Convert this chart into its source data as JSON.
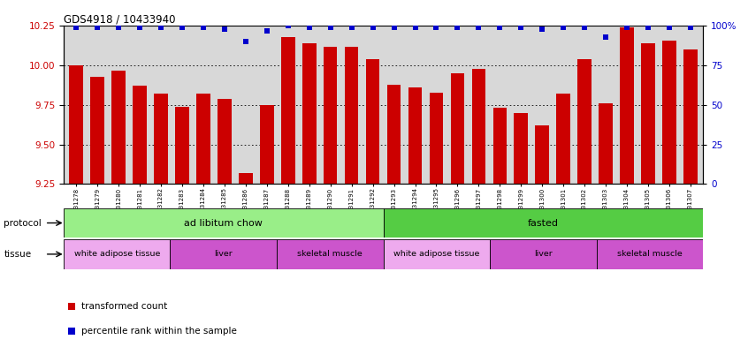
{
  "title": "GDS4918 / 10433940",
  "samples": [
    "GSM1131278",
    "GSM1131279",
    "GSM1131280",
    "GSM1131281",
    "GSM1131282",
    "GSM1131283",
    "GSM1131284",
    "GSM1131285",
    "GSM1131286",
    "GSM1131287",
    "GSM1131288",
    "GSM1131289",
    "GSM1131290",
    "GSM1131291",
    "GSM1131292",
    "GSM1131293",
    "GSM1131294",
    "GSM1131295",
    "GSM1131296",
    "GSM1131297",
    "GSM1131298",
    "GSM1131299",
    "GSM1131300",
    "GSM1131301",
    "GSM1131302",
    "GSM1131303",
    "GSM1131304",
    "GSM1131305",
    "GSM1131306",
    "GSM1131307"
  ],
  "bar_values": [
    10.0,
    9.93,
    9.97,
    9.87,
    9.82,
    9.74,
    9.82,
    9.79,
    9.32,
    9.75,
    10.18,
    10.14,
    10.12,
    10.12,
    10.04,
    9.88,
    9.86,
    9.83,
    9.95,
    9.98,
    9.73,
    9.7,
    9.62,
    9.82,
    10.04,
    9.76,
    10.24,
    10.14,
    10.16,
    10.1
  ],
  "percentile_values": [
    99,
    99,
    99,
    99,
    99,
    99,
    99,
    98,
    90,
    97,
    100,
    99,
    99,
    99,
    99,
    99,
    99,
    99,
    99,
    99,
    99,
    99,
    98,
    99,
    99,
    93,
    99,
    99,
    99,
    99
  ],
  "bar_color": "#cc0000",
  "dot_color": "#0000cc",
  "ylim_left": [
    9.25,
    10.25
  ],
  "ylim_right": [
    0,
    100
  ],
  "yticks_left": [
    9.25,
    9.5,
    9.75,
    10.0,
    10.25
  ],
  "yticks_right": [
    0,
    25,
    50,
    75,
    100
  ],
  "yticklabels_right": [
    "0",
    "25",
    "50",
    "75",
    "100%"
  ],
  "grid_values": [
    9.5,
    9.75,
    10.0
  ],
  "protocol_groups": [
    {
      "label": "ad libitum chow",
      "start": 0,
      "end": 14,
      "color": "#99ee88"
    },
    {
      "label": "fasted",
      "start": 15,
      "end": 29,
      "color": "#55cc44"
    }
  ],
  "tissue_groups": [
    {
      "label": "white adipose tissue",
      "start": 0,
      "end": 4,
      "color": "#eeaaee"
    },
    {
      "label": "liver",
      "start": 5,
      "end": 9,
      "color": "#dd66dd"
    },
    {
      "label": "skeletal muscle",
      "start": 10,
      "end": 14,
      "color": "#dd66dd"
    },
    {
      "label": "white adipose tissue",
      "start": 15,
      "end": 19,
      "color": "#eeaaee"
    },
    {
      "label": "liver",
      "start": 20,
      "end": 24,
      "color": "#dd66dd"
    },
    {
      "label": "skeletal muscle",
      "start": 25,
      "end": 29,
      "color": "#dd66dd"
    }
  ],
  "plot_bg": "#d8d8d8",
  "fig_bg": "#ffffff"
}
